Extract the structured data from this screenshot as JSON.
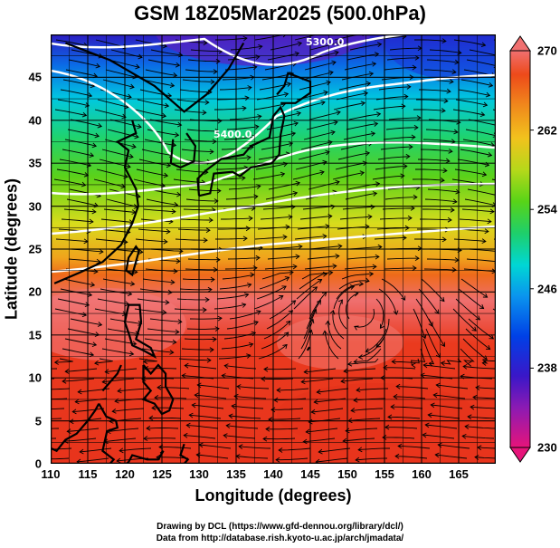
{
  "title": "GSM 18Z05Mar2025 (500.0hPa)",
  "axes": {
    "xlabel": "Longitude (degrees)",
    "ylabel": "Latitude  (degrees)",
    "x_ticks": [
      "110",
      "115",
      "120",
      "125",
      "130",
      "135",
      "140",
      "145",
      "150",
      "155",
      "160",
      "165"
    ],
    "y_ticks": [
      "0",
      "5",
      "10",
      "15",
      "20",
      "25",
      "30",
      "35",
      "40",
      "45"
    ],
    "xlim": [
      110,
      170
    ],
    "ylim": [
      0,
      50
    ]
  },
  "colorbar": {
    "ticks": [
      "270",
      "262",
      "254",
      "246",
      "238",
      "230"
    ],
    "range": [
      230,
      270
    ],
    "colors": [
      "#e6147a",
      "#8c1ab3",
      "#3a17c8",
      "#0040e6",
      "#0a93ee",
      "#00d7d4",
      "#1ecf6b",
      "#58d418",
      "#b6d81a",
      "#f2c21d",
      "#f08a1c",
      "#ee4a1a",
      "#ea2b1c",
      "#f07070"
    ]
  },
  "contours": {
    "labels": [
      "5300.0",
      "5400.0"
    ]
  },
  "credits": {
    "line1": "Drawing by DCL (https://www.gfd-dennou.org/library/dcl/)",
    "line2": "Data from http://database.rish.kyoto-u.ac.jp/arch/jmadata/"
  }
}
